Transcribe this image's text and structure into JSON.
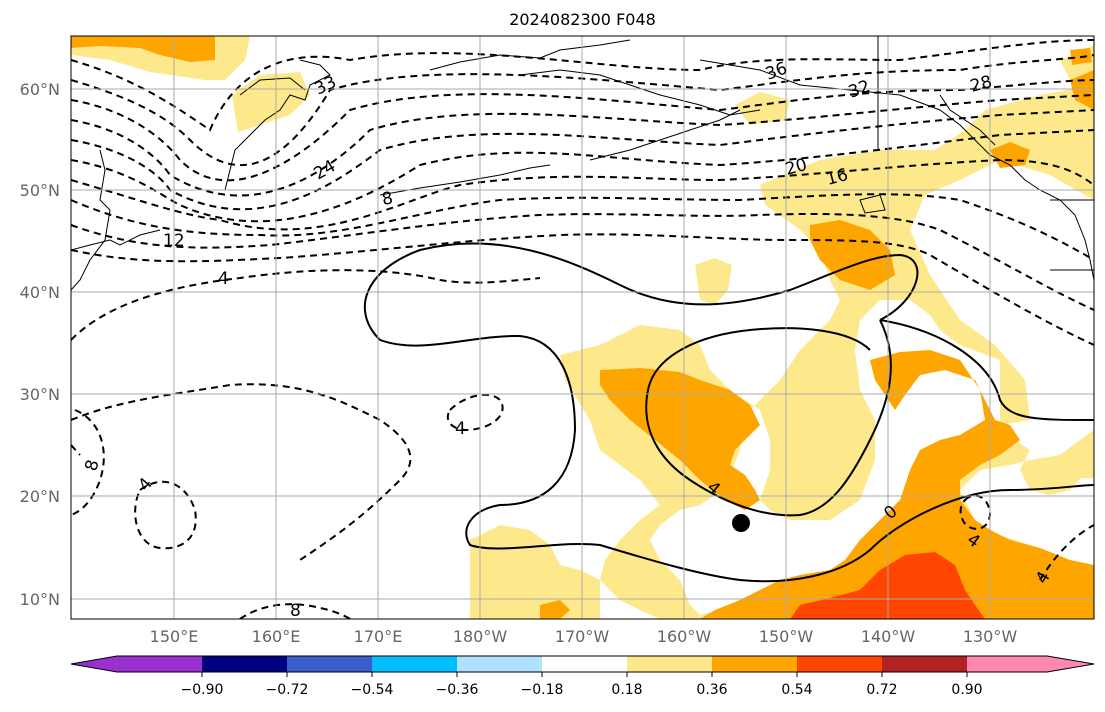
{
  "title": "2024082300 F048",
  "lat_labels": [
    "60°N",
    "50°N",
    "40°N",
    "30°N",
    "20°N",
    "10°N"
  ],
  "lon_labels": [
    "150°E",
    "160°E",
    "170°E",
    "180°W",
    "170°W",
    "160°W",
    "150°W",
    "140°W",
    "130°W"
  ],
  "colorbar": {
    "ticks": [
      "−0.90",
      "−0.72",
      "−0.54",
      "−0.36",
      "−0.18",
      "0.18",
      "0.36",
      "0.54",
      "0.72",
      "0.90"
    ],
    "colors": [
      "#9b30d0",
      "#000080",
      "#3a5fcd",
      "#00bfff",
      "#b0e2ff",
      "#ffffff",
      "#fde98b",
      "#ffa500",
      "#ff4500",
      "#b22222",
      "#ff88b0"
    ]
  },
  "contour_labels": [
    "36",
    "32",
    "28",
    "33",
    "24",
    "20",
    "16",
    "8",
    "12",
    "4",
    "4",
    "8",
    "4",
    "4",
    "0",
    "4",
    "4",
    "8"
  ],
  "marker": "storm-position"
}
